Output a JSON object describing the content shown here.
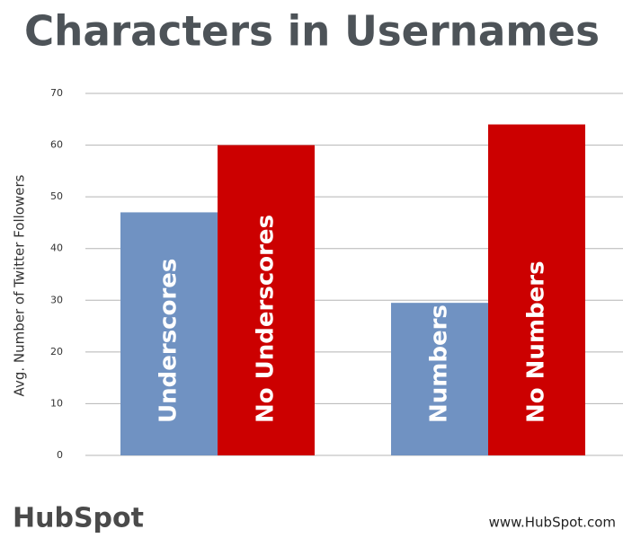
{
  "chart_data": {
    "type": "bar",
    "title": "Characters in Usernames",
    "ylabel": "Avg. Number of Twitter Followers",
    "categories": [
      "Underscores",
      "No Underscores",
      "Numbers",
      "No Numbers"
    ],
    "values": [
      47,
      60,
      29.5,
      64
    ],
    "colors": [
      "#7092c2",
      "#cc0000",
      "#7092c2",
      "#cc0000"
    ],
    "ylim": [
      0,
      70
    ],
    "yticks": [
      0,
      10,
      20,
      30,
      40,
      50,
      60,
      70
    ],
    "grid": true,
    "brand": "HubSpot",
    "website": "www.HubSpot.com"
  }
}
